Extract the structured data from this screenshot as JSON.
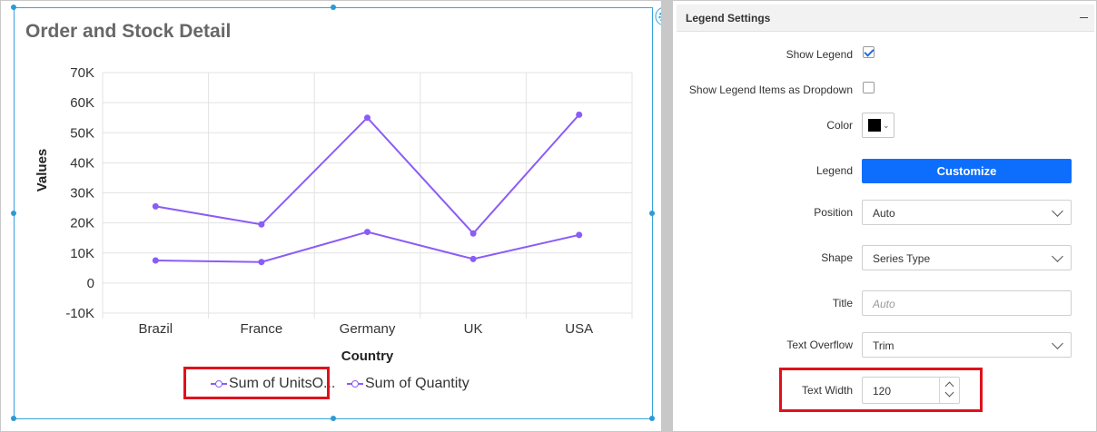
{
  "chart_data": {
    "type": "line",
    "title": "Order and Stock Detail",
    "xlabel": "Country",
    "ylabel": "Values",
    "categories": [
      "Brazil",
      "France",
      "Germany",
      "UK",
      "USA"
    ],
    "y_ticks": [
      "70K",
      "60K",
      "50K",
      "40K",
      "30K",
      "20K",
      "10K",
      "0",
      "-10K"
    ],
    "ylim": [
      -10000,
      70000
    ],
    "grid": true,
    "legend_position": "bottom",
    "series": [
      {
        "name": "Sum of UnitsO...",
        "values": [
          7500,
          7000,
          17000,
          8000,
          16000
        ]
      },
      {
        "name": "Sum of Quantity",
        "values": [
          25500,
          19500,
          55000,
          16500,
          56000
        ]
      }
    ],
    "colors": {
      "line": "#8b5cf6",
      "grid": "#e3e3e3",
      "axis_text": "#333333"
    }
  },
  "panel": {
    "title": "Legend Settings",
    "show_legend_label": "Show Legend",
    "show_legend_checked": true,
    "dropdown_items_label": "Show Legend Items as Dropdown",
    "dropdown_items_checked": false,
    "color_label": "Color",
    "color_value": "#000000",
    "legend_label": "Legend",
    "customize_button": "Customize",
    "position_label": "Position",
    "position_value": "Auto",
    "shape_label": "Shape",
    "shape_value": "Series Type",
    "title_label": "Title",
    "title_placeholder": "Auto",
    "overflow_label": "Text Overflow",
    "overflow_value": "Trim",
    "width_label": "Text Width",
    "width_value": "120"
  },
  "icons": {
    "gear": "gear-icon",
    "collapse": "minus-icon",
    "chevron": "chevron-down-icon"
  }
}
